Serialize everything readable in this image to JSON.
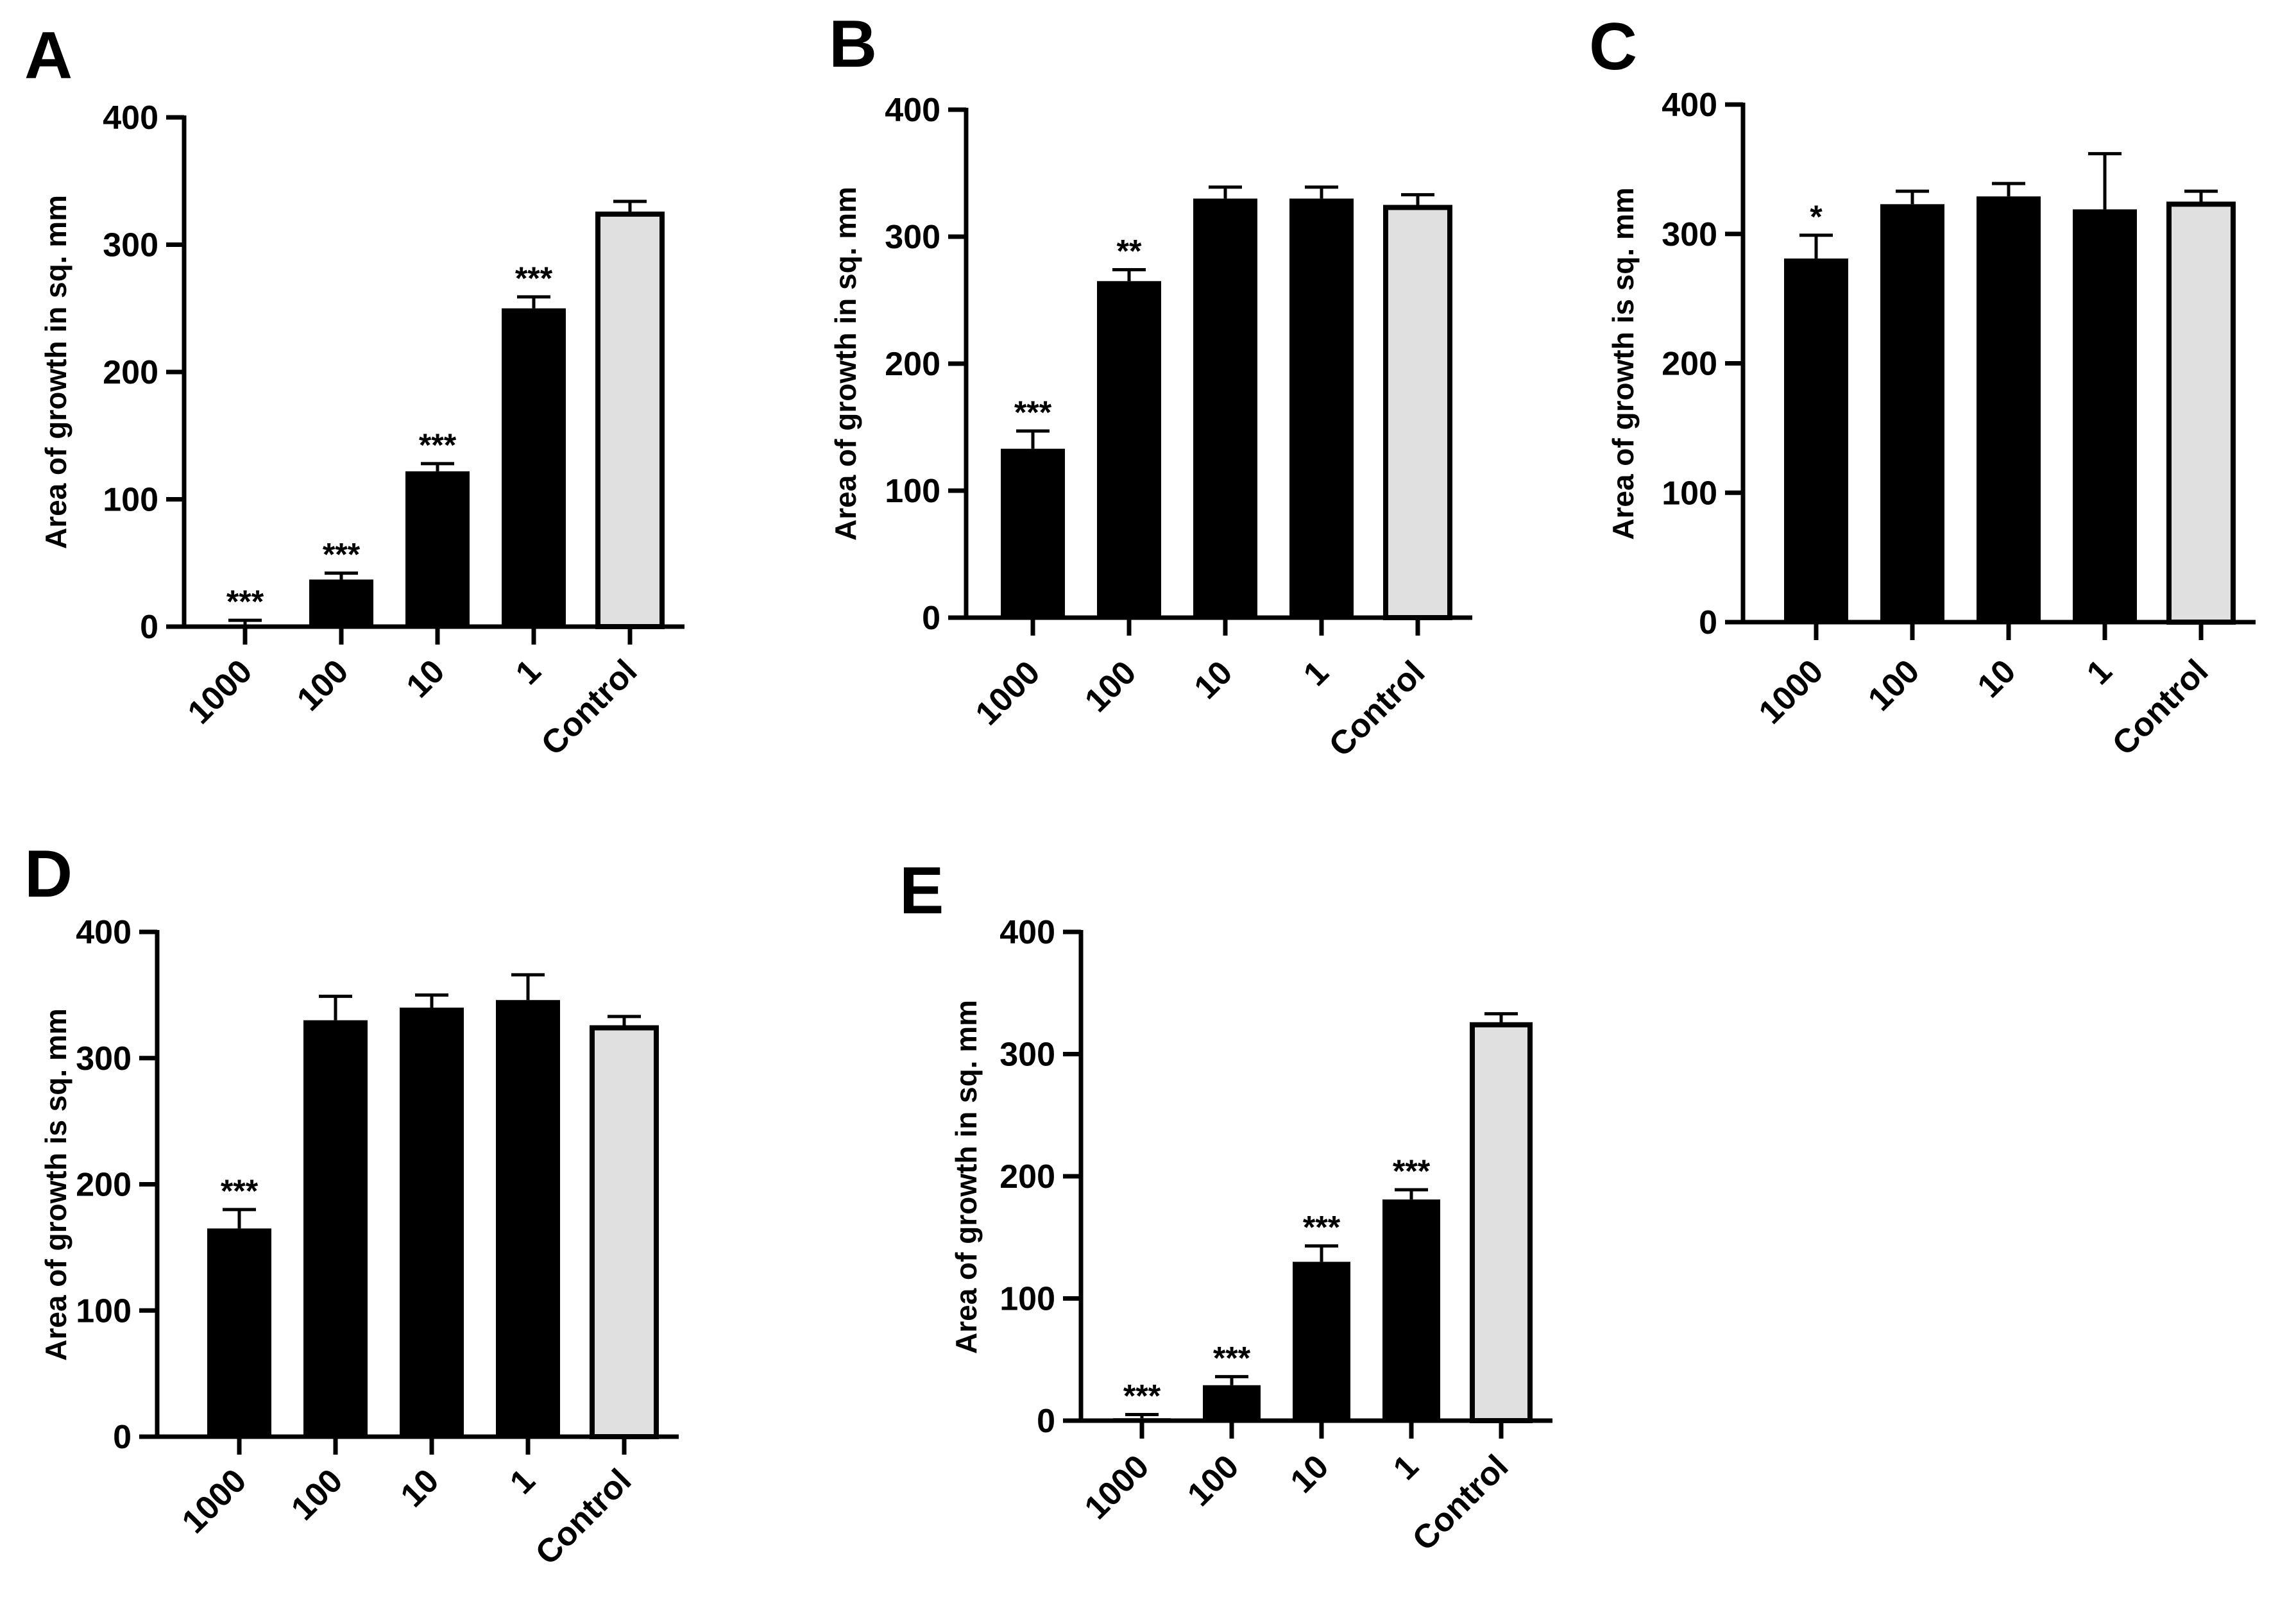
{
  "chart_data": [
    {
      "panel": "A",
      "type": "bar",
      "categories": [
        "1000",
        "100",
        "10",
        "1",
        "Control"
      ],
      "values": [
        0,
        37,
        122,
        250,
        324
      ],
      "errors": [
        5,
        5,
        6,
        9,
        10
      ],
      "significance": [
        "***",
        "***",
        "***",
        "***",
        ""
      ],
      "ylabel": "Area of growth in sq. mm",
      "xlabel": "",
      "ylim": [
        0,
        400
      ],
      "yticks": [
        "0",
        "100",
        "200",
        "300",
        "400"
      ],
      "colors": [
        "#000000",
        "#000000",
        "#000000",
        "#000000",
        "#e0e0e0"
      ]
    },
    {
      "panel": "B",
      "type": "bar",
      "categories": [
        "1000",
        "100",
        "10",
        "1",
        "Control"
      ],
      "values": [
        133,
        265,
        330,
        330,
        323
      ],
      "errors": [
        14,
        9,
        9,
        9,
        10
      ],
      "significance": [
        "***",
        "**",
        "",
        "",
        ""
      ],
      "ylabel": "Area of growth in sq. mm",
      "xlabel": "",
      "ylim": [
        0,
        400
      ],
      "yticks": [
        "0",
        "100",
        "200",
        "300",
        "400"
      ],
      "colors": [
        "#000000",
        "#000000",
        "#000000",
        "#000000",
        "#e0e0e0"
      ]
    },
    {
      "panel": "C",
      "type": "bar",
      "categories": [
        "1000",
        "100",
        "10",
        "1",
        "Control"
      ],
      "values": [
        281,
        323,
        329,
        319,
        323
      ],
      "errors": [
        18,
        10,
        10,
        43,
        10
      ],
      "significance": [
        "*",
        "",
        "",
        "",
        ""
      ],
      "ylabel": "Area of growth is sq. mm",
      "xlabel": "",
      "ylim": [
        0,
        400
      ],
      "yticks": [
        "0",
        "100",
        "200",
        "300",
        "400"
      ],
      "colors": [
        "#000000",
        "#000000",
        "#000000",
        "#000000",
        "#e0e0e0"
      ]
    },
    {
      "panel": "D",
      "type": "bar",
      "categories": [
        "1000",
        "100",
        "10",
        "1",
        "Control"
      ],
      "values": [
        165,
        330,
        340,
        346,
        324
      ],
      "errors": [
        15,
        19,
        10,
        20,
        9
      ],
      "significance": [
        "***",
        "",
        "",
        "",
        ""
      ],
      "ylabel": "Area of growth is sq. mm",
      "xlabel": "",
      "ylim": [
        0,
        400
      ],
      "yticks": [
        "0",
        "100",
        "200",
        "300",
        "400"
      ],
      "colors": [
        "#000000",
        "#000000",
        "#000000",
        "#000000",
        "#e0e0e0"
      ]
    },
    {
      "panel": "E",
      "type": "bar",
      "categories": [
        "1000",
        "100",
        "10",
        "1",
        "Control"
      ],
      "values": [
        2,
        29,
        130,
        181,
        324
      ],
      "errors": [
        3,
        7,
        13,
        8,
        9
      ],
      "significance": [
        "***",
        "***",
        "***",
        "***",
        ""
      ],
      "ylabel": "Area of growth in sq. mm",
      "xlabel": "",
      "ylim": [
        0,
        400
      ],
      "yticks": [
        "0",
        "100",
        "200",
        "300",
        "400"
      ],
      "colors": [
        "#000000",
        "#000000",
        "#000000",
        "#000000",
        "#e0e0e0"
      ]
    }
  ]
}
